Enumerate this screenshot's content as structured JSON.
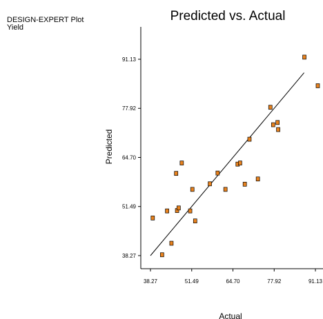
{
  "sidebar": {
    "program": "DESIGN-EXPERT Plot",
    "response": "Yield"
  },
  "chart_data": {
    "type": "scatter",
    "title": "Predicted vs. Actual",
    "xlabel": "Actual",
    "ylabel": "Predicted",
    "xlim": [
      38.27,
      91.13
    ],
    "ylim": [
      38.27,
      91.13
    ],
    "xticks": [
      "38.27",
      "51.49",
      "64.70",
      "77.92",
      "91.13"
    ],
    "yticks": [
      "38.27",
      "51.49",
      "64.70",
      "77.92",
      "91.13"
    ],
    "grid": false,
    "marker_color": "#e8821e",
    "marker_edge_color": "#000000",
    "reference_line": {
      "x": [
        38.27,
        87.5
      ],
      "y": [
        38.27,
        87.5
      ]
    },
    "points": [
      {
        "x": 39.0,
        "y": 48.4
      },
      {
        "x": 42.0,
        "y": 38.5
      },
      {
        "x": 43.6,
        "y": 50.3
      },
      {
        "x": 45.0,
        "y": 41.6
      },
      {
        "x": 46.5,
        "y": 60.4
      },
      {
        "x": 46.8,
        "y": 50.4
      },
      {
        "x": 47.3,
        "y": 51.1
      },
      {
        "x": 48.3,
        "y": 63.2
      },
      {
        "x": 51.0,
        "y": 50.3
      },
      {
        "x": 51.7,
        "y": 56.1
      },
      {
        "x": 52.6,
        "y": 47.6
      },
      {
        "x": 57.3,
        "y": 57.6
      },
      {
        "x": 59.8,
        "y": 60.5
      },
      {
        "x": 62.3,
        "y": 56.1
      },
      {
        "x": 66.2,
        "y": 62.9
      },
      {
        "x": 67.0,
        "y": 63.2
      },
      {
        "x": 68.5,
        "y": 57.5
      },
      {
        "x": 70.0,
        "y": 69.6
      },
      {
        "x": 72.7,
        "y": 58.9
      },
      {
        "x": 76.7,
        "y": 78.2
      },
      {
        "x": 77.6,
        "y": 73.5
      },
      {
        "x": 79.0,
        "y": 74.1
      },
      {
        "x": 79.2,
        "y": 72.2
      },
      {
        "x": 87.6,
        "y": 91.7
      },
      {
        "x": 91.9,
        "y": 84.0
      }
    ]
  }
}
